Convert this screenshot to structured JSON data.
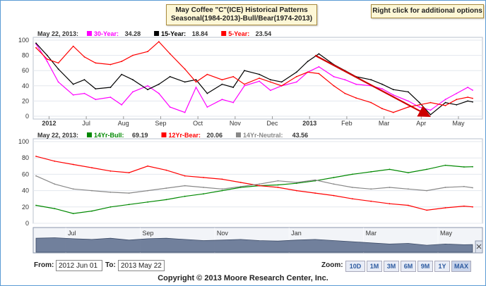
{
  "title": {
    "line1": "May Coffee \"C\"(ICE) Historical Patterns",
    "line2": "Seasonal(1984-2013)-Bull/Bear(1974-2013)"
  },
  "right_click_hint": "Right click for additional options",
  "colors": {
    "thirty_year": "#ff00ff",
    "fifteen_year": "#000000",
    "five_year": "#ff0000",
    "bull": "#008800",
    "bear": "#ff0000",
    "neutral": "#888888",
    "arrow": "#cc0000",
    "navigator": "#5a6b8c"
  },
  "chart_data": [
    {
      "type": "line",
      "legend": {
        "date": "May 22, 2013:",
        "items": [
          {
            "label": "30-Year:",
            "value": "34.28",
            "color": "#ff00ff"
          },
          {
            "label": "15-Year:",
            "value": "18.84",
            "color": "#000000"
          },
          {
            "label": "5-Year:",
            "value": "23.54",
            "color": "#ff0000"
          }
        ]
      },
      "x_tick_labels": [
        "2012",
        "Jul",
        "Aug",
        "Sep",
        "Oct",
        "Nov",
        "Dec",
        "2013",
        "Feb",
        "Mar",
        "Apr",
        "May"
      ],
      "y_tick_labels": [
        "0",
        "20",
        "40",
        "60",
        "80",
        "100"
      ],
      "ylim": [
        0,
        100
      ],
      "x_unit": "months since 2012-06-01",
      "series": [
        {
          "name": "30-Year",
          "color": "#ff00ff",
          "x": [
            0,
            0.3,
            0.6,
            1.0,
            1.3,
            1.6,
            2.0,
            2.3,
            2.6,
            3.0,
            3.3,
            3.6,
            4.0,
            4.3,
            4.6,
            5.0,
            5.3,
            5.6,
            6.0,
            6.3,
            6.6,
            7.0,
            7.3,
            7.6,
            8.0,
            8.3,
            8.6,
            9.0,
            9.3,
            9.6,
            10.0,
            10.3,
            10.6,
            11.0,
            11.3,
            11.6,
            11.73
          ],
          "y": [
            95,
            72,
            45,
            28,
            30,
            22,
            25,
            15,
            32,
            40,
            30,
            12,
            5,
            38,
            12,
            22,
            18,
            40,
            46,
            34,
            40,
            45,
            58,
            65,
            52,
            48,
            42,
            40,
            36,
            28,
            20,
            12,
            8,
            22,
            30,
            38,
            34.28
          ]
        },
        {
          "name": "15-Year",
          "color": "#000000",
          "x": [
            0,
            0.3,
            0.6,
            1.0,
            1.3,
            1.6,
            2.0,
            2.3,
            2.6,
            3.0,
            3.3,
            3.6,
            4.0,
            4.3,
            4.6,
            5.0,
            5.3,
            5.6,
            6.0,
            6.3,
            6.6,
            7.0,
            7.3,
            7.6,
            8.0,
            8.3,
            8.6,
            9.0,
            9.3,
            9.6,
            10.0,
            10.3,
            10.6,
            11.0,
            11.3,
            11.6,
            11.73
          ],
          "y": [
            96,
            80,
            62,
            42,
            48,
            36,
            38,
            55,
            48,
            35,
            42,
            52,
            45,
            48,
            30,
            42,
            38,
            60,
            55,
            48,
            45,
            58,
            72,
            82,
            68,
            60,
            52,
            48,
            42,
            35,
            32,
            18,
            2,
            18,
            15,
            20,
            18.84
          ]
        },
        {
          "name": "5-Year",
          "color": "#ff0000",
          "x": [
            0,
            0.3,
            0.6,
            1.0,
            1.3,
            1.6,
            2.0,
            2.3,
            2.6,
            3.0,
            3.3,
            3.6,
            4.0,
            4.3,
            4.6,
            5.0,
            5.3,
            5.6,
            6.0,
            6.3,
            6.6,
            7.0,
            7.3,
            7.6,
            8.0,
            8.3,
            8.6,
            9.0,
            9.3,
            9.6,
            10.0,
            10.3,
            10.6,
            11.0,
            11.3,
            11.6,
            11.73
          ],
          "y": [
            90,
            75,
            70,
            92,
            78,
            70,
            68,
            72,
            80,
            85,
            98,
            82,
            62,
            45,
            55,
            48,
            52,
            42,
            50,
            45,
            40,
            52,
            58,
            56,
            40,
            30,
            24,
            18,
            10,
            5,
            12,
            15,
            18,
            14,
            22,
            25,
            23.54
          ]
        }
      ],
      "annotations": [
        {
          "type": "arrow",
          "from": {
            "x": 7.5,
            "y": 80
          },
          "to": {
            "x": 10.5,
            "y": 2
          }
        }
      ]
    },
    {
      "type": "line",
      "legend": {
        "date": "May 22, 2013:",
        "items": [
          {
            "label": "14Yr-Bull:",
            "value": "69.19",
            "color": "#008800"
          },
          {
            "label": "12Yr-Bear:",
            "value": "20.06",
            "color": "#ff0000"
          },
          {
            "label": "14Yr-Neutral:",
            "value": "43.56",
            "color": "#888888"
          }
        ]
      },
      "y_tick_labels": [
        "0",
        "20",
        "40",
        "60",
        "80",
        "100"
      ],
      "ylim": [
        0,
        100
      ],
      "x_unit": "months since 2012-06-01",
      "series": [
        {
          "name": "14Yr-Bull",
          "color": "#008800",
          "x": [
            0,
            0.5,
            1.0,
            1.5,
            2.0,
            2.5,
            3.0,
            3.5,
            4.0,
            4.5,
            5.0,
            5.5,
            6.0,
            6.5,
            7.0,
            7.5,
            8.0,
            8.5,
            9.0,
            9.5,
            10.0,
            10.5,
            11.0,
            11.5,
            11.73
          ],
          "y": [
            22,
            18,
            12,
            15,
            20,
            23,
            26,
            29,
            33,
            36,
            40,
            44,
            46,
            47,
            49,
            52,
            56,
            60,
            63,
            66,
            62,
            66,
            71,
            69,
            69.19
          ]
        },
        {
          "name": "12Yr-Bear",
          "color": "#ff0000",
          "x": [
            0,
            0.5,
            1.0,
            1.5,
            2.0,
            2.5,
            3.0,
            3.5,
            4.0,
            4.5,
            5.0,
            5.5,
            6.0,
            6.5,
            7.0,
            7.5,
            8.0,
            8.5,
            9.0,
            9.5,
            10.0,
            10.5,
            11.0,
            11.5,
            11.73
          ],
          "y": [
            82,
            76,
            72,
            68,
            64,
            62,
            70,
            65,
            58,
            56,
            54,
            50,
            46,
            44,
            40,
            37,
            34,
            30,
            27,
            24,
            22,
            16,
            19,
            21,
            20.06
          ]
        },
        {
          "name": "14Yr-Neutral",
          "color": "#888888",
          "x": [
            0,
            0.5,
            1.0,
            1.5,
            2.0,
            2.5,
            3.0,
            3.5,
            4.0,
            4.5,
            5.0,
            5.5,
            6.0,
            6.5,
            7.0,
            7.5,
            8.0,
            8.5,
            9.0,
            9.5,
            10.0,
            10.5,
            11.0,
            11.5,
            11.73
          ],
          "y": [
            58,
            48,
            42,
            40,
            38,
            37,
            40,
            43,
            46,
            44,
            42,
            45,
            48,
            52,
            50,
            53,
            48,
            44,
            42,
            44,
            42,
            40,
            44,
            45,
            43.56
          ]
        }
      ]
    },
    {
      "type": "area",
      "role": "navigator",
      "x_tick_labels": [
        "Jul",
        "Sep",
        "Nov",
        "Jan",
        "Mar",
        "May"
      ],
      "x": [
        0,
        0.5,
        1.0,
        1.5,
        2.0,
        2.5,
        3.0,
        3.5,
        4.0,
        4.5,
        5.0,
        5.5,
        6.0,
        6.5,
        7.0,
        7.5,
        8.0,
        8.5,
        9.0,
        9.5,
        10.0,
        10.5,
        11.0,
        11.5,
        11.73
      ],
      "y": [
        60,
        62,
        58,
        55,
        60,
        52,
        58,
        60,
        55,
        50,
        52,
        55,
        50,
        48,
        52,
        55,
        50,
        45,
        40,
        35,
        38,
        30,
        35,
        32,
        33
      ]
    }
  ],
  "controls": {
    "from_label": "From:",
    "from_value": "2012 Jun 01",
    "to_label": "To:",
    "to_value": "2013 May 22",
    "zoom_label": "Zoom:",
    "zoom_buttons": [
      "10D",
      "1M",
      "3M",
      "6M",
      "9M",
      "1Y",
      "MAX"
    ]
  },
  "copyright": "Copyright © 2013 Moore Research Center, Inc."
}
